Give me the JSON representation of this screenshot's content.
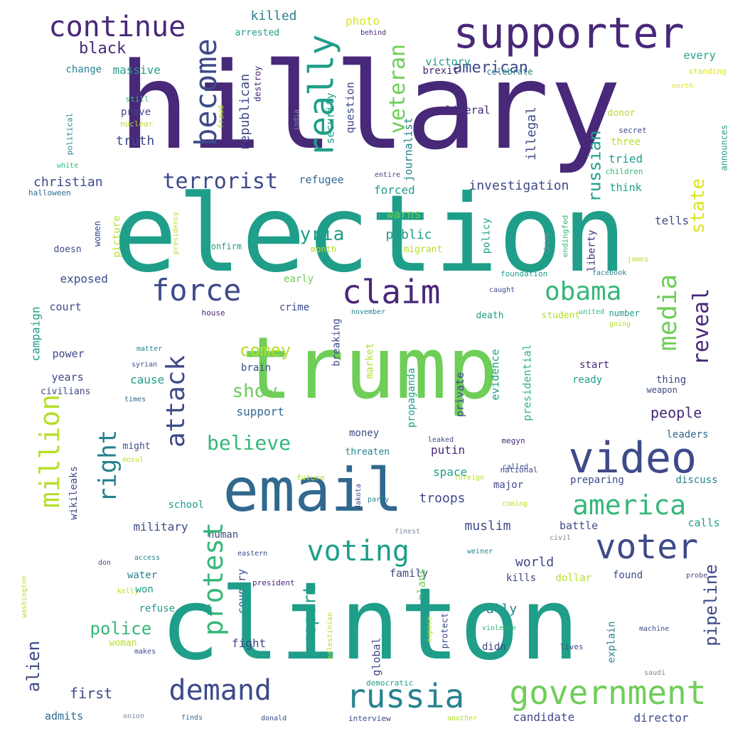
{
  "palette": {
    "purple": "#482878",
    "indigo": "#3e4a89",
    "blue": "#31688e",
    "teal": "#26828e",
    "green": "#1f9e89",
    "mint": "#35b779",
    "lime": "#6ece58",
    "chartreuse": "#b5de2b",
    "yellow": "#dbe322",
    "gray": "#7a8a9a"
  },
  "words": [
    {
      "text": "hillary",
      "c": "purple"
    },
    {
      "text": "supporter",
      "c": "purple"
    },
    {
      "text": "continue",
      "c": "purple"
    },
    {
      "text": "black",
      "c": "purple"
    },
    {
      "text": "killed",
      "c": "teal"
    },
    {
      "text": "photo",
      "c": "yellow"
    },
    {
      "text": "arrested",
      "c": "green"
    },
    {
      "text": "behind",
      "c": "purple"
    },
    {
      "text": "become",
      "c": "indigo"
    },
    {
      "text": "really",
      "c": "green"
    },
    {
      "text": "veteran",
      "c": "lime"
    },
    {
      "text": "american",
      "c": "indigo"
    },
    {
      "text": "victory",
      "c": "green"
    },
    {
      "text": "every",
      "c": "green"
    },
    {
      "text": "brexit",
      "c": "purple"
    },
    {
      "text": "celebrate",
      "c": "teal"
    },
    {
      "text": "standing",
      "c": "yellow"
    },
    {
      "text": "change",
      "c": "teal"
    },
    {
      "text": "massive",
      "c": "green"
    },
    {
      "text": "republican",
      "c": "indigo"
    },
    {
      "text": "destroy",
      "c": "purple"
    },
    {
      "text": "security",
      "c": "green"
    },
    {
      "text": "question",
      "c": "indigo"
    },
    {
      "text": "north",
      "c": "yellow"
    },
    {
      "text": "still",
      "c": "mint"
    },
    {
      "text": "prove",
      "c": "indigo"
    },
    {
      "text": "nuclear",
      "c": "chartreuse"
    },
    {
      "text": "fraud",
      "c": "chartreuse"
    },
    {
      "text": "india",
      "c": "gray"
    },
    {
      "text": "liberal",
      "c": "purple"
    },
    {
      "text": "illegal",
      "c": "indigo"
    },
    {
      "text": "journalist",
      "c": "teal"
    },
    {
      "text": "donor",
      "c": "chartreuse"
    },
    {
      "text": "secret",
      "c": "indigo"
    },
    {
      "text": "three",
      "c": "chartreuse"
    },
    {
      "text": "tried",
      "c": "green"
    },
    {
      "text": "children",
      "c": "mint"
    },
    {
      "text": "announces",
      "c": "green"
    },
    {
      "text": "political",
      "c": "teal"
    },
    {
      "text": "truth",
      "c": "indigo"
    },
    {
      "text": "white",
      "c": "mint"
    },
    {
      "text": "christian",
      "c": "indigo"
    },
    {
      "text": "halloween",
      "c": "blue"
    },
    {
      "text": "terrorist",
      "c": "indigo"
    },
    {
      "text": "refugee",
      "c": "blue"
    },
    {
      "text": "entire",
      "c": "indigo"
    },
    {
      "text": "forced",
      "c": "green"
    },
    {
      "text": "investigation",
      "c": "indigo"
    },
    {
      "text": "russian",
      "c": "green"
    },
    {
      "text": "think",
      "c": "green"
    },
    {
      "text": "election",
      "c": "green"
    },
    {
      "text": "women",
      "c": "indigo"
    },
    {
      "text": "picture",
      "c": "chartreuse"
    },
    {
      "text": "presidency",
      "c": "chartreuse"
    },
    {
      "text": "syria",
      "c": "green"
    },
    {
      "text": "warns",
      "c": "lime"
    },
    {
      "text": "public",
      "c": "green"
    },
    {
      "text": "migrant",
      "c": "chartreuse"
    },
    {
      "text": "policy",
      "c": "green"
    },
    {
      "text": "state",
      "c": "yellow"
    },
    {
      "text": "tells",
      "c": "indigo"
    },
    {
      "text": "doesn",
      "c": "indigo"
    },
    {
      "text": "confirm",
      "c": "green"
    },
    {
      "text": "month",
      "c": "chartreuse"
    },
    {
      "text": "china",
      "c": "gray"
    },
    {
      "text": "endingfed",
      "c": "mint"
    },
    {
      "text": "liberty",
      "c": "purple"
    },
    {
      "text": "james",
      "c": "chartreuse"
    },
    {
      "text": "exposed",
      "c": "indigo"
    },
    {
      "text": "force",
      "c": "indigo"
    },
    {
      "text": "early",
      "c": "lime"
    },
    {
      "text": "claim",
      "c": "purple"
    },
    {
      "text": "obama",
      "c": "mint"
    },
    {
      "text": "foundation",
      "c": "green"
    },
    {
      "text": "facebook",
      "c": "teal"
    },
    {
      "text": "caught",
      "c": "indigo"
    },
    {
      "text": "reveal",
      "c": "purple"
    },
    {
      "text": "media",
      "c": "lime"
    },
    {
      "text": "campaign",
      "c": "green"
    },
    {
      "text": "court",
      "c": "indigo"
    },
    {
      "text": "crime",
      "c": "indigo"
    },
    {
      "text": "house",
      "c": "purple"
    },
    {
      "text": "november",
      "c": "teal"
    },
    {
      "text": "student",
      "c": "chartreuse"
    },
    {
      "text": "united",
      "c": "mint"
    },
    {
      "text": "death",
      "c": "green"
    },
    {
      "text": "number",
      "c": "green"
    },
    {
      "text": "going",
      "c": "chartreuse"
    },
    {
      "text": "trump",
      "c": "lime"
    },
    {
      "text": "attack",
      "c": "indigo"
    },
    {
      "text": "comey",
      "c": "chartreuse"
    },
    {
      "text": "power",
      "c": "indigo"
    },
    {
      "text": "matter",
      "c": "teal"
    },
    {
      "text": "breaking",
      "c": "indigo"
    },
    {
      "text": "market",
      "c": "chartreuse"
    },
    {
      "text": "evidence",
      "c": "green"
    },
    {
      "text": "presidential",
      "c": "mint"
    },
    {
      "text": "show",
      "c": "lime"
    },
    {
      "text": "brain",
      "c": "indigo"
    },
    {
      "text": "propaganda",
      "c": "green"
    },
    {
      "text": "private",
      "c": "indigo"
    },
    {
      "text": "start",
      "c": "purple"
    },
    {
      "text": "ready",
      "c": "green"
    },
    {
      "text": "syrian",
      "c": "indigo"
    },
    {
      "text": "years",
      "c": "indigo"
    },
    {
      "text": "cause",
      "c": "green"
    },
    {
      "text": "civilians",
      "c": "indigo"
    },
    {
      "text": "thing",
      "c": "indigo"
    },
    {
      "text": "weapon",
      "c": "indigo"
    },
    {
      "text": "times",
      "c": "blue"
    },
    {
      "text": "support",
      "c": "blue"
    },
    {
      "text": "people",
      "c": "purple"
    },
    {
      "text": "million",
      "c": "chartreuse"
    },
    {
      "text": "right",
      "c": "teal"
    },
    {
      "text": "believe",
      "c": "mint"
    },
    {
      "text": "video",
      "c": "indigo"
    },
    {
      "text": "money",
      "c": "indigo"
    },
    {
      "text": "leaked",
      "c": "indigo"
    },
    {
      "text": "megyn",
      "c": "purple"
    },
    {
      "text": "leaders",
      "c": "blue"
    },
    {
      "text": "might",
      "c": "indigo"
    },
    {
      "text": "mosul",
      "c": "chartreuse"
    },
    {
      "text": "threaten",
      "c": "teal"
    },
    {
      "text": "putin",
      "c": "purple"
    },
    {
      "text": "space",
      "c": "green"
    },
    {
      "text": "called",
      "c": "indigo"
    },
    {
      "text": "national",
      "c": "indigo"
    },
    {
      "text": "preparing",
      "c": "indigo"
    },
    {
      "text": "discuss",
      "c": "teal"
    },
    {
      "text": "email",
      "c": "blue"
    },
    {
      "text": "wikileaks",
      "c": "indigo"
    },
    {
      "text": "future",
      "c": "chartreuse"
    },
    {
      "text": "foreign",
      "c": "chartreuse"
    },
    {
      "text": "america",
      "c": "mint"
    },
    {
      "text": "major",
      "c": "indigo"
    },
    {
      "text": "school",
      "c": "green"
    },
    {
      "text": "troops",
      "c": "indigo"
    },
    {
      "text": "dakota",
      "c": "indigo"
    },
    {
      "text": "party",
      "c": "teal"
    },
    {
      "text": "coming",
      "c": "chartreuse"
    },
    {
      "text": "calls",
      "c": "green"
    },
    {
      "text": "military",
      "c": "indigo"
    },
    {
      "text": "human",
      "c": "indigo"
    },
    {
      "text": "muslim",
      "c": "indigo"
    },
    {
      "text": "battle",
      "c": "indigo"
    },
    {
      "text": "civil",
      "c": "gray"
    },
    {
      "text": "finest",
      "c": "gray"
    },
    {
      "text": "voting",
      "c": "green"
    },
    {
      "text": "voter",
      "c": "indigo"
    },
    {
      "text": "access",
      "c": "teal"
    },
    {
      "text": "eastern",
      "c": "indigo"
    },
    {
      "text": "weiner",
      "c": "teal"
    },
    {
      "text": "world",
      "c": "indigo"
    },
    {
      "text": "don",
      "c": "indigo"
    },
    {
      "text": "washington",
      "c": "chartreuse"
    },
    {
      "text": "water",
      "c": "teal"
    },
    {
      "text": "protest",
      "c": "mint"
    },
    {
      "text": "country",
      "c": "indigo"
    },
    {
      "text": "family",
      "c": "indigo"
    },
    {
      "text": "kelly",
      "c": "chartreuse"
    },
    {
      "text": "kills",
      "c": "indigo"
    },
    {
      "text": "dollar",
      "c": "chartreuse"
    },
    {
      "text": "found",
      "c": "indigo"
    },
    {
      "text": "probe",
      "c": "indigo"
    },
    {
      "text": "pipeline",
      "c": "indigo"
    },
    {
      "text": "won",
      "c": "green"
    },
    {
      "text": "president",
      "c": "purple"
    },
    {
      "text": "report",
      "c": "green"
    },
    {
      "text": "plans",
      "c": "lime"
    },
    {
      "text": "refuse",
      "c": "green"
    },
    {
      "text": "rally",
      "c": "teal"
    },
    {
      "text": "police",
      "c": "mint"
    },
    {
      "text": "woman",
      "c": "chartreuse"
    },
    {
      "text": "makes",
      "c": "indigo"
    },
    {
      "text": "clinton",
      "c": "green"
    },
    {
      "text": "palestinian",
      "c": "chartreuse"
    },
    {
      "text": "violence",
      "c": "mint"
    },
    {
      "text": "machine",
      "c": "indigo"
    },
    {
      "text": "fight",
      "c": "indigo"
    },
    {
      "text": "global",
      "c": "indigo"
    },
    {
      "text": "expose",
      "c": "chartreuse"
    },
    {
      "text": "protect",
      "c": "indigo"
    },
    {
      "text": "didn",
      "c": "indigo"
    },
    {
      "text": "explain",
      "c": "teal"
    },
    {
      "text": "lives",
      "c": "indigo"
    },
    {
      "text": "alien",
      "c": "indigo"
    },
    {
      "text": "first",
      "c": "indigo"
    },
    {
      "text": "demand",
      "c": "indigo"
    },
    {
      "text": "russia",
      "c": "teal"
    },
    {
      "text": "government",
      "c": "lime"
    },
    {
      "text": "democratic",
      "c": "green"
    },
    {
      "text": "saudi",
      "c": "gray"
    },
    {
      "text": "admits",
      "c": "blue"
    },
    {
      "text": "onion",
      "c": "gray"
    },
    {
      "text": "finds",
      "c": "blue"
    },
    {
      "text": "donald",
      "c": "indigo"
    },
    {
      "text": "interview",
      "c": "indigo"
    },
    {
      "text": "another",
      "c": "chartreuse"
    },
    {
      "text": "candidate",
      "c": "indigo"
    },
    {
      "text": "director",
      "c": "indigo"
    }
  ]
}
